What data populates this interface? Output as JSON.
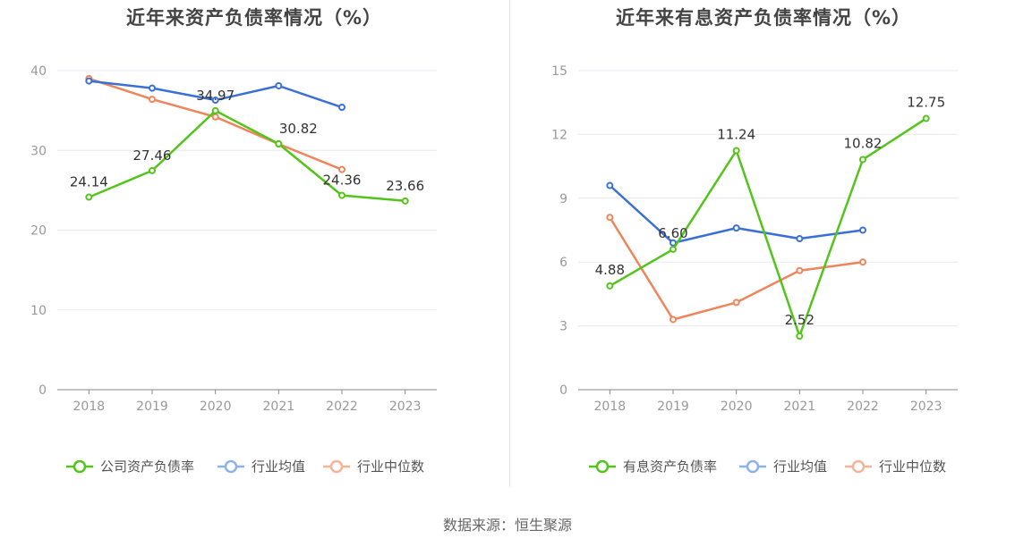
{
  "source": "数据来源：恒生聚源",
  "colors": {
    "company": "#52c41a",
    "avg": "#3a6fd8",
    "median": "#f0845a",
    "grid": "#e6e9f0",
    "axis": "#888888"
  },
  "chart_data": [
    {
      "type": "line",
      "title": "近年来资产负债率情况（%）",
      "categories": [
        "2018",
        "2019",
        "2020",
        "2021",
        "2022",
        "2023"
      ],
      "ylim": [
        0,
        40
      ],
      "yticks": [
        0,
        10,
        20,
        30,
        40
      ],
      "grid": true,
      "legend_position": "bottom",
      "series": [
        {
          "name": "公司资产负债率",
          "values": [
            24.14,
            27.46,
            34.97,
            30.82,
            24.36,
            23.66
          ],
          "labels": [
            "24.14",
            "27.46",
            "34.97",
            "30.82",
            "24.36",
            "23.66"
          ],
          "color": "#52c41a"
        },
        {
          "name": "行业均值",
          "values": [
            38.7,
            37.8,
            36.3,
            38.1,
            35.4,
            null
          ],
          "color": "#3a6fd8"
        },
        {
          "name": "行业中位数",
          "values": [
            39.0,
            36.4,
            34.2,
            30.8,
            27.6,
            null
          ],
          "color": "#f0845a"
        }
      ]
    },
    {
      "type": "line",
      "title": "近年来有息资产负债率情况（%）",
      "categories": [
        "2018",
        "2019",
        "2020",
        "2021",
        "2022",
        "2023"
      ],
      "ylim": [
        0,
        15
      ],
      "yticks": [
        0,
        3,
        6,
        9,
        12,
        15
      ],
      "grid": true,
      "legend_position": "bottom",
      "series": [
        {
          "name": "有息资产负债率",
          "values": [
            4.88,
            6.6,
            11.24,
            2.52,
            10.82,
            12.75
          ],
          "labels": [
            "4.88",
            "6.60",
            "11.24",
            "2.52",
            "10.82",
            "12.75"
          ],
          "color": "#52c41a"
        },
        {
          "name": "行业均值",
          "values": [
            9.6,
            6.9,
            7.6,
            7.1,
            7.5,
            null
          ],
          "color": "#3a6fd8"
        },
        {
          "name": "行业中位数",
          "values": [
            8.1,
            3.3,
            4.1,
            5.6,
            6.0,
            null
          ],
          "color": "#f0845a"
        }
      ]
    }
  ]
}
